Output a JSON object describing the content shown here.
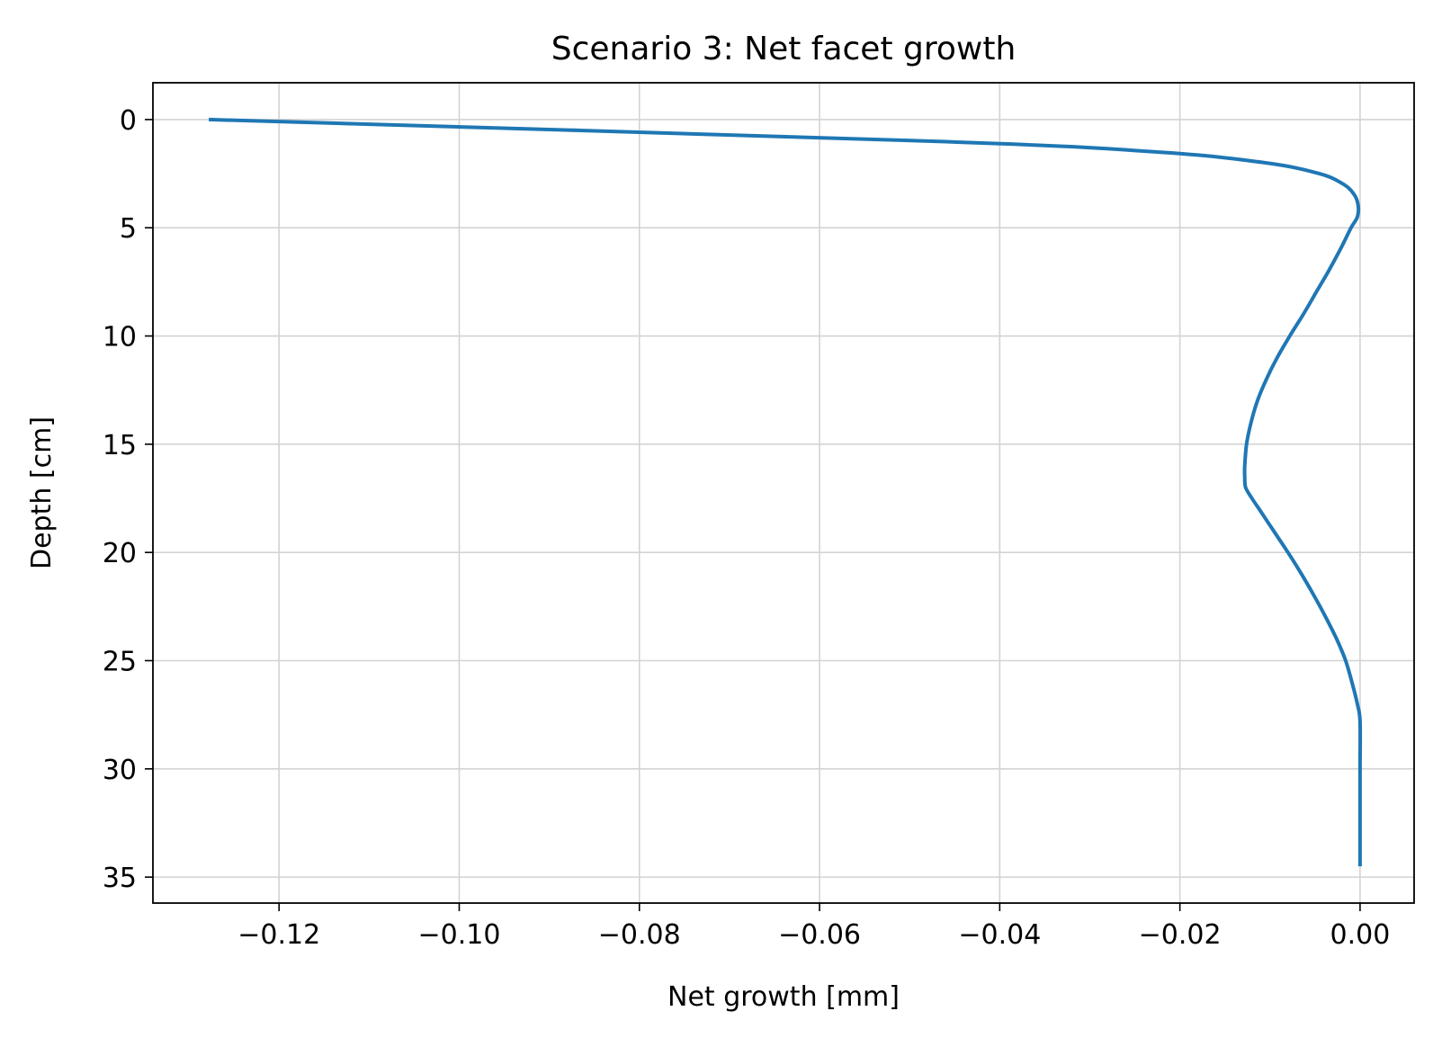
{
  "chart_data": {
    "type": "line",
    "title": "Scenario 3: Net facet growth",
    "xlabel": "Net growth [mm]",
    "ylabel": "Depth [cm]",
    "xlim": [
      -0.134,
      0.006
    ],
    "ylim": [
      36.2,
      -1.7
    ],
    "y_inverted": true,
    "grid": true,
    "legend": "none",
    "x_ticks": [
      {
        "value": -0.12,
        "label": "−0.12"
      },
      {
        "value": -0.1,
        "label": "−0.10"
      },
      {
        "value": -0.08,
        "label": "−0.08"
      },
      {
        "value": -0.06,
        "label": "−0.06"
      },
      {
        "value": -0.04,
        "label": "−0.04"
      },
      {
        "value": -0.02,
        "label": "−0.02"
      },
      {
        "value": 0.0,
        "label": "0.00"
      }
    ],
    "y_ticks": [
      {
        "value": 0,
        "label": "0"
      },
      {
        "value": 5,
        "label": "5"
      },
      {
        "value": 10,
        "label": "10"
      },
      {
        "value": 15,
        "label": "15"
      },
      {
        "value": 20,
        "label": "20"
      },
      {
        "value": 25,
        "label": "25"
      },
      {
        "value": 30,
        "label": "30"
      },
      {
        "value": 35,
        "label": "35"
      }
    ],
    "series": [
      {
        "color": "#1f77b4",
        "points": [
          [
            -0.1278,
            0.0
          ],
          [
            -0.0475,
            1.0
          ],
          [
            -0.0225,
            1.5
          ],
          [
            -0.0105,
            2.0
          ],
          [
            -0.0045,
            2.5
          ],
          [
            -0.0018,
            3.0
          ],
          [
            -0.0006,
            3.5
          ],
          [
            -0.0002,
            4.0
          ],
          [
            -0.0003,
            4.5
          ],
          [
            -0.001,
            5.0
          ],
          [
            -0.0022,
            6.0
          ],
          [
            -0.0035,
            7.0
          ],
          [
            -0.0049,
            8.0
          ],
          [
            -0.0063,
            9.0
          ],
          [
            -0.0078,
            10.0
          ],
          [
            -0.0092,
            11.0
          ],
          [
            -0.0104,
            12.0
          ],
          [
            -0.0114,
            13.0
          ],
          [
            -0.0121,
            14.0
          ],
          [
            -0.0126,
            15.0
          ],
          [
            -0.0128,
            16.0
          ],
          [
            -0.0128,
            16.5
          ],
          [
            -0.0127,
            17.0
          ],
          [
            -0.012,
            17.5
          ],
          [
            -0.0112,
            18.0
          ],
          [
            -0.0096,
            19.0
          ],
          [
            -0.008,
            20.0
          ],
          [
            -0.0065,
            21.0
          ],
          [
            -0.0051,
            22.0
          ],
          [
            -0.0038,
            23.0
          ],
          [
            -0.0026,
            24.0
          ],
          [
            -0.0016,
            25.0
          ],
          [
            -0.0009,
            26.0
          ],
          [
            -0.0003,
            27.0
          ],
          [
            0.0,
            27.8
          ],
          [
            0.0,
            30.0
          ],
          [
            0.0,
            32.0
          ],
          [
            0.0,
            34.5
          ]
        ]
      }
    ]
  }
}
